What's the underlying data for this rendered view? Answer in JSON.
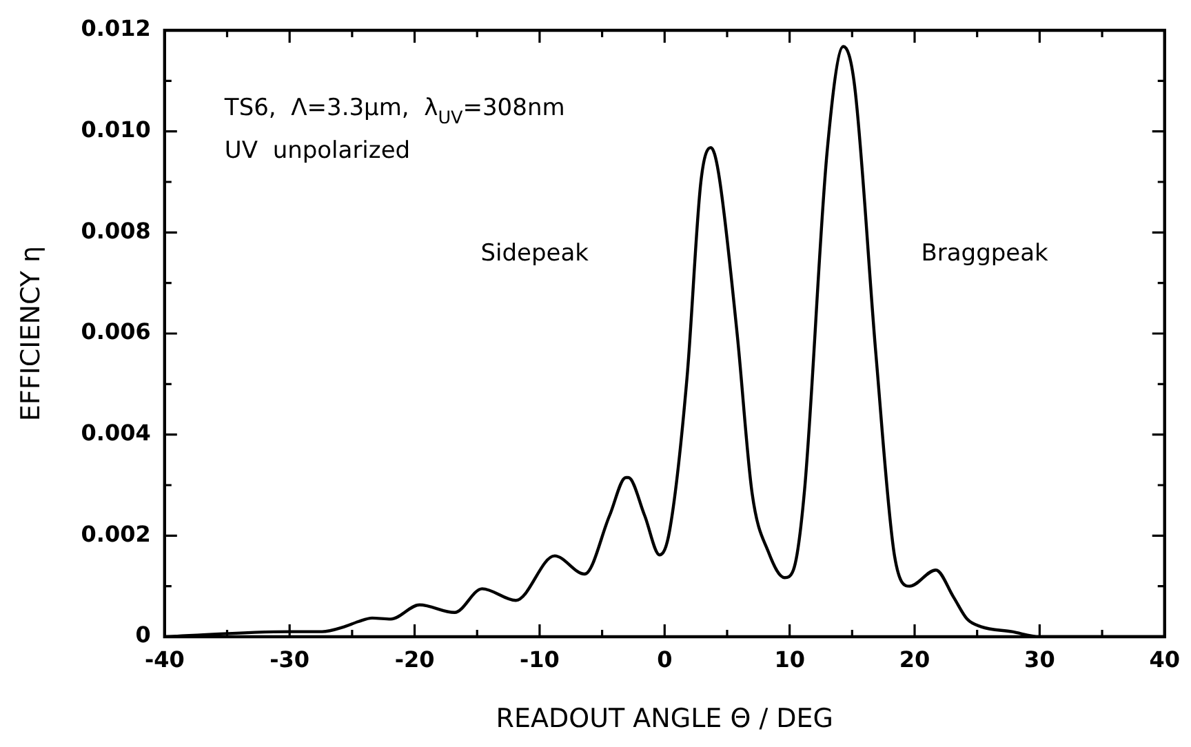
{
  "chart_data": {
    "type": "line",
    "xlabel": "READOUT ANGLE Θ / DEG",
    "ylabel": "EFFICIENCY η",
    "annotations": [
      "TS6,  Λ=3.3µm,  λ$_{UV}$=308nm",
      "UV  unpolarized",
      "Sidepeak",
      "Braggpeak"
    ],
    "series": [
      {
        "color": "#000000",
        "x": [
          -40,
          -30,
          -27.4,
          -25.6,
          -24.5,
          -23.4,
          -21.9,
          -19.6,
          -16.8,
          -14.6,
          -11.9,
          -8.8,
          -6.4,
          -4.4,
          -3.1,
          -2.9,
          -1.6,
          -0.4,
          0.4,
          1.8,
          2.9,
          3.7,
          4.3,
          5.8,
          7.0,
          8.3,
          9.6,
          10.3,
          11.2,
          13.0,
          14.3,
          15.2,
          16.9,
          18.4,
          19.6,
          21.7,
          23.1,
          24.2,
          25.3,
          27.8,
          30,
          40
        ],
        "values": [
          0,
          0.0001,
          0.0001,
          0.0002,
          0.0003,
          0.00037,
          0.00035,
          0.00063,
          0.00048,
          0.00095,
          0.00072,
          0.0016,
          0.00124,
          0.0024,
          0.00315,
          0.00315,
          0.0024,
          0.00162,
          0.0021,
          0.00515,
          0.009,
          0.00968,
          0.0092,
          0.006,
          0.00284,
          0.00168,
          0.00117,
          0.00132,
          0.00292,
          0.0096,
          0.01168,
          0.0109,
          0.0056,
          0.00159,
          0.001,
          0.00132,
          0.00079,
          0.00035,
          0.0002,
          0.0001,
          0,
          0
        ]
      }
    ],
    "xlim": [
      -40,
      40
    ],
    "ylim": [
      0,
      0.012
    ],
    "xticks": [
      -40,
      {
        "value": -35,
        "label": null
      },
      -30,
      {
        "value": -25,
        "label": null
      },
      -20,
      {
        "value": -15,
        "label": null
      },
      -10,
      {
        "value": -5,
        "label": null
      },
      0,
      {
        "value": 5,
        "label": null
      },
      10,
      {
        "value": 15,
        "label": null
      },
      20,
      {
        "value": 25,
        "label": null
      },
      30,
      {
        "value": 35,
        "label": null
      },
      40
    ],
    "yticks": [
      0,
      {
        "value": 0.001,
        "label": null
      },
      0.002,
      {
        "value": 0.003,
        "label": null
      },
      0.004,
      {
        "value": 0.005,
        "label": null
      },
      0.006,
      {
        "value": 0.007,
        "label": null
      },
      0.008,
      {
        "value": 0.009,
        "label": null
      },
      {
        "value": 0.01,
        "label": "0.010"
      },
      {
        "value": 0.011,
        "label": null
      },
      0.012
    ],
    "grid": false,
    "legend": false,
    "marker": "none",
    "line_style": "solid"
  }
}
